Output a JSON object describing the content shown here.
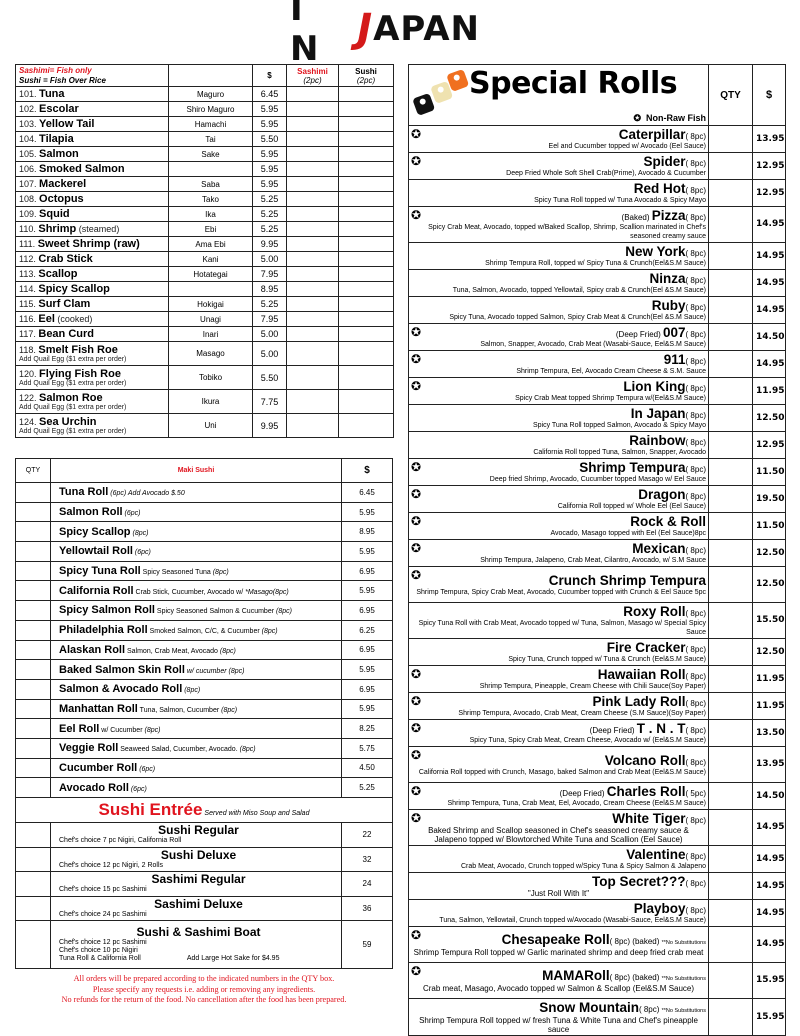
{
  "logo": {
    "text": "IN JAPAN",
    "colors": {
      "ink": "#111111",
      "accent": "#d41a1a"
    }
  },
  "nigiri": {
    "legend_sashimi": "Sashimi= Fish only",
    "legend_sushi": "Sushi   = Fish Over Rice",
    "col_price": "$",
    "col_sashimi": "Sashimi",
    "col_sashimi_sub": "(2pc)",
    "col_sushi": "Sushi",
    "col_sushi_sub": "(2pc)",
    "items": [
      {
        "no": "101.",
        "name": "Tuna",
        "note": "",
        "jp": "Maguro",
        "price": "6.45",
        "sub": ""
      },
      {
        "no": "102.",
        "name": "Escolar",
        "note": "",
        "jp": "Shiro Maguro",
        "price": "5.95",
        "sub": ""
      },
      {
        "no": "103.",
        "name": "Yellow Tail",
        "note": "",
        "jp": "Hamachi",
        "price": "5.95",
        "sub": ""
      },
      {
        "no": "104.",
        "name": "Tilapia",
        "note": "",
        "jp": "Tai",
        "price": "5.50",
        "sub": ""
      },
      {
        "no": "105.",
        "name": "Salmon",
        "note": "",
        "jp": "Sake",
        "price": "5.95",
        "sub": ""
      },
      {
        "no": "106.",
        "name": "Smoked Salmon",
        "note": "",
        "jp": "",
        "price": "5.95",
        "sub": ""
      },
      {
        "no": "107.",
        "name": "Mackerel",
        "note": "",
        "jp": "Saba",
        "price": "5.95",
        "sub": ""
      },
      {
        "no": "108.",
        "name": "Octopus",
        "note": "",
        "jp": "Tako",
        "price": "5.25",
        "sub": ""
      },
      {
        "no": "109.",
        "name": "Squid",
        "note": "",
        "jp": "Ika",
        "price": "5.25",
        "sub": ""
      },
      {
        "no": "110.",
        "name": "Shrimp",
        "note": "(steamed)",
        "jp": "Ebi",
        "price": "5.25",
        "sub": ""
      },
      {
        "no": "111.",
        "name": "Sweet Shrimp (raw)",
        "note": "",
        "jp": "Ama Ebi",
        "price": "9.95",
        "sub": ""
      },
      {
        "no": "112.",
        "name": "Crab Stick",
        "note": "",
        "jp": "Kani",
        "price": "5.00",
        "sub": ""
      },
      {
        "no": "113.",
        "name": "Scallop",
        "note": "",
        "jp": "Hotategai",
        "price": "7.95",
        "sub": ""
      },
      {
        "no": "114.",
        "name": "Spicy Scallop",
        "note": "",
        "jp": "",
        "price": "8.95",
        "sub": ""
      },
      {
        "no": "115.",
        "name": "Surf Clam",
        "note": "",
        "jp": "Hokigai",
        "price": "5.25",
        "sub": ""
      },
      {
        "no": "116.",
        "name": "Eel",
        "note": "(cooked)",
        "jp": "Unagi",
        "price": "7.95",
        "sub": ""
      },
      {
        "no": "117.",
        "name": "Bean Curd",
        "note": "",
        "jp": "Inari",
        "price": "5.00",
        "sub": ""
      },
      {
        "no": "118.",
        "name": "Smelt Fish Roe",
        "note": "",
        "jp": "Masago",
        "price": "5.00",
        "sub": "Add Quail Egg ($1 extra per order)"
      },
      {
        "no": "120.",
        "name": "Flying Fish Roe",
        "note": "",
        "jp": "Tobiko",
        "price": "5.50",
        "sub": "Add Quail Egg ($1 extra per order)"
      },
      {
        "no": "122.",
        "name": "Salmon Roe",
        "note": "",
        "jp": "Ikura",
        "price": "7.75",
        "sub": "Add Quail Egg ($1 extra per order)"
      },
      {
        "no": "124.",
        "name": "Sea Urchin",
        "note": "",
        "jp": "Uni",
        "price": "9.95",
        "sub": "Add Quail Egg ($1 extra per order)"
      }
    ]
  },
  "maki": {
    "col_qty": "QTY",
    "title": "Maki Sushi",
    "col_price": "$",
    "items": [
      {
        "name": "Tuna Roll",
        "desc": "",
        "note": "(6pc)  Add Avocado $.50",
        "price": "6.45"
      },
      {
        "name": "Salmon Roll",
        "desc": "",
        "note": "(6pc)",
        "price": "5.95"
      },
      {
        "name": "Spicy Scallop",
        "desc": "",
        "note": "(8pc)",
        "price": "8.95"
      },
      {
        "name": "Yellowtail Roll",
        "desc": "",
        "note": "(6pc)",
        "price": "5.95"
      },
      {
        "name": "Spicy Tuna Roll",
        "desc": "Spicy Seasoned Tuna",
        "note": "(8pc)",
        "price": "6.95"
      },
      {
        "name": "California Roll",
        "desc": "Crab Stick, Cucumber, Avocado w/",
        "note": "*Masago(8pc)",
        "price": "5.95"
      },
      {
        "name": "Spicy Salmon Roll",
        "desc": "Spicy Seasoned Salmon & Cucumber",
        "note": "(8pc)",
        "price": "6.95"
      },
      {
        "name": "Philadelphia Roll",
        "desc": "Smoked Salmon, C/C, & Cucumber",
        "note": "(8pc)",
        "price": "6.25"
      },
      {
        "name": "Alaskan Roll",
        "desc": "Salmon, Crab Meat, Avocado",
        "note": "(8pc)",
        "price": "6.95"
      },
      {
        "name": "Baked Salmon Skin Roll",
        "desc": "",
        "note": "w/ cucumber (8pc)",
        "price": "5.95"
      },
      {
        "name": "Salmon & Avocado Roll",
        "desc": "",
        "note": "(8pc)",
        "price": "6.95"
      },
      {
        "name": "Manhattan Roll",
        "desc": "Tuna, Salmon, Cucumber",
        "note": "(8pc)",
        "price": "5.95"
      },
      {
        "name": "Eel Roll",
        "desc": "w/ Cucumber",
        "note": "(8pc)",
        "price": "8.25"
      },
      {
        "name": "Veggie Roll",
        "desc": "Seaweed Salad, Cucumber, Avocado.",
        "note": "(8pc)",
        "price": "5.75"
      },
      {
        "name": "Cucumber Roll",
        "desc": "",
        "note": "(6pc)",
        "price": "4.50"
      },
      {
        "name": "Avocado Roll",
        "desc": "",
        "note": "(6pc)",
        "price": "5.25"
      }
    ]
  },
  "entree": {
    "title": "Sushi Entrée",
    "subtitle": "Served with Miso Soup and Salad",
    "items": [
      {
        "name": "Sushi Regular",
        "lines": [
          "Chef's choice 7 pc Nigiri, California Roll"
        ],
        "extra": "",
        "price": "22"
      },
      {
        "name": "Sushi Deluxe",
        "lines": [
          "Chef's choice 12 pc Nigiri, 2 Rolls"
        ],
        "extra": "",
        "price": "32"
      },
      {
        "name": "Sashimi Regular",
        "lines": [
          "Chef's choice 15 pc Sashimi"
        ],
        "extra": "",
        "price": "24"
      },
      {
        "name": "Sashimi Deluxe",
        "lines": [
          "Chef's choice 24 pc Sashimi"
        ],
        "extra": "",
        "price": "36"
      },
      {
        "name": "Sushi & Sashimi Boat",
        "lines": [
          "Chef's choice 12 pc Sashimi",
          "Chef's choice 10 pc Nigiri",
          "Tuna Roll & California Roll"
        ],
        "extra": "Add Large Hot Sake for  $4.95",
        "price": "59"
      }
    ]
  },
  "notes": [
    "All orders will be prepared according to the indicated numbers in the QTY box.",
    "Please specify any requests i.e. adding or removing any ingredients.",
    "No refunds for the return of the food. No cancellation after the food has been prepared."
  ],
  "special_rolls": {
    "title": "Special Rolls",
    "col_qty": "QTY",
    "col_price": "$",
    "legend": "Non-Raw Fish",
    "star_icon": "star-outline",
    "items": [
      {
        "star": true,
        "prefix": "",
        "name": "Caterpillar",
        "size": "( 8pc)",
        "nosub": "",
        "desc": "Eel and Cucumber topped w/ Avocado (Eel Sauce)",
        "price": "13.95",
        "tall": false,
        "center": false
      },
      {
        "star": true,
        "prefix": "",
        "name": "Spider",
        "size": "( 8pc)",
        "nosub": "",
        "desc": "Deep Fried Whole Soft Shell Crab(Prime), Avocado & Cucumber",
        "price": "12.95",
        "tall": false,
        "center": false
      },
      {
        "star": false,
        "prefix": "",
        "name": "Red Hot",
        "size": "( 8pc)",
        "nosub": "",
        "desc": "Spicy Tuna Roll topped w/ Tuna Avocado  & Spicy Mayo",
        "price": "12.95",
        "tall": false,
        "center": false
      },
      {
        "star": true,
        "prefix": "(Baked)",
        "name": "Pizza",
        "size": "( 8pc)",
        "nosub": "",
        "desc": "Spicy Crab Meat, Avocado, topped w/Baked Scallop, Shrimp, Scallion marinated in Chef's seasoned creamy sauce",
        "price": "14.95",
        "tall": true,
        "center": false
      },
      {
        "star": false,
        "prefix": "",
        "name": "New York",
        "size": "( 8pc)",
        "nosub": "",
        "desc": "Shrimp Tempura Roll, topped w/ Spicy Tuna & Crunch(Eel&S.M Sauce)",
        "price": "14.95",
        "tall": false,
        "center": false
      },
      {
        "star": false,
        "prefix": "",
        "name": "Ninza",
        "size": "( 8pc)",
        "nosub": "",
        "desc": "Tuna, Salmon, Avocado, topped Yellowtail, Spicy crab & Crunch(Eel &S.M Sauce)",
        "price": "14.95",
        "tall": false,
        "center": false
      },
      {
        "star": false,
        "prefix": "",
        "name": "Ruby",
        "size": "( 8pc)",
        "nosub": "",
        "desc": "Spicy Tuna, Avocado topped Salmon, Spicy Crab Meat & Crunch(Eel &S.M Sauce)",
        "price": "14.95",
        "tall": false,
        "center": false
      },
      {
        "star": true,
        "prefix": "(Deep Fried)",
        "name": "007",
        "size": "( 8pc)",
        "nosub": "",
        "desc": "Salmon, Snapper, Avocado, Crab Meat (Wasabi-Sauce, Eel&S.M Sauce)",
        "price": "14.50",
        "tall": false,
        "center": false
      },
      {
        "star": true,
        "prefix": "",
        "name": "911",
        "size": "( 8pc)",
        "nosub": "",
        "desc": "Shrimp Tempura, Eel, Avocado Cream Cheese & S.M. Sauce",
        "price": "14.95",
        "tall": false,
        "center": false
      },
      {
        "star": true,
        "prefix": "",
        "name": "Lion King",
        "size": "( 8pc)",
        "nosub": "",
        "desc": "Spicy Crab Meat topped Shrimp Tempura w/(Eel&S.M Sauce)",
        "price": "11.95",
        "tall": false,
        "center": false
      },
      {
        "star": false,
        "prefix": "",
        "name": "In Japan",
        "size": "( 8pc)",
        "nosub": "",
        "desc": "Spicy Tuna Roll topped Salmon, Avocado & Spicy Mayo",
        "price": "12.50",
        "tall": false,
        "center": false
      },
      {
        "star": false,
        "prefix": "",
        "name": "Rainbow",
        "size": "( 8pc)",
        "nosub": "",
        "desc": "California Roll topped Tuna, Salmon, Snapper, Avocado",
        "price": "12.95",
        "tall": false,
        "center": false
      },
      {
        "star": true,
        "prefix": "",
        "name": "Shrimp Tempura",
        "size": "( 8pc)",
        "nosub": "",
        "desc": "Deep fried Shrimp, Avocado, Cucumber topped Masago w/ Eel Sauce",
        "price": "11.50",
        "tall": false,
        "center": false
      },
      {
        "star": true,
        "prefix": "",
        "name": "Dragon",
        "size": "( 8pc)",
        "nosub": "",
        "desc": "California Roll topped w/ Whole Eel (Eel Sauce)",
        "price": "19.50",
        "tall": false,
        "center": false
      },
      {
        "star": true,
        "prefix": "",
        "name": "Rock & Roll",
        "size": "",
        "nosub": "",
        "desc": "Avocado, Masago topped with Eel (Eel Sauce)8pc",
        "price": "11.50",
        "tall": false,
        "center": false
      },
      {
        "star": true,
        "prefix": "",
        "name": "Mexican",
        "size": "( 8pc)",
        "nosub": "",
        "desc": "Shrimp Tempura, Jalapeno, Crab Meat, Cilantro, Avocado, w/ S.M Sauce",
        "price": "12.50",
        "tall": false,
        "center": false
      },
      {
        "star": true,
        "prefix": "",
        "name": "Crunch Shrimp Tempura",
        "size": "",
        "nosub": "",
        "desc": "Shrimp Tempura, Spicy Crab Meat, Avocado, Cucumber topped with Crunch & Eel Sauce 5pc",
        "price": "12.50",
        "tall": true,
        "center": false
      },
      {
        "star": false,
        "prefix": "",
        "name": "Roxy Roll",
        "size": "( 8pc)",
        "nosub": "",
        "desc": "Spicy Tuna Roll with Crab Meat, Avocado topped w/ Tuna, Salmon, Masago w/ Special Spicy Sauce",
        "price": "15.50",
        "tall": true,
        "center": false
      },
      {
        "star": false,
        "prefix": "",
        "name": "Fire Cracker",
        "size": "( 8pc)",
        "nosub": "",
        "desc": "Spicy Tuna, Crunch topped w/ Tuna & Crunch (Eel&S.M Sauce)",
        "price": "12.50",
        "tall": false,
        "center": false
      },
      {
        "star": true,
        "prefix": "",
        "name": "Hawaiian Roll",
        "size": "( 8pc)",
        "nosub": "",
        "desc": "Shrimp Tempura, Pineapple, Cream Cheese with Chili Sauce(Soy Paper)",
        "price": "11.95",
        "tall": false,
        "center": false
      },
      {
        "star": true,
        "prefix": "",
        "name": "Pink Lady Roll",
        "size": "( 8pc)",
        "nosub": "",
        "desc": "Shrimp Tempura, Avocado, Crab Meat, Cream Cheese (S.M Sauce)(Soy Paper)",
        "price": "11.95",
        "tall": false,
        "center": false
      },
      {
        "star": true,
        "prefix": "(Deep Fried)",
        "name": "T . N . T",
        "size": "( 8pc)",
        "nosub": "",
        "desc": "Spicy Tuna, Spicy Crab Meat, Cream Cheese, Avocado w/ (Eel&S.M Sauce)",
        "price": "13.50",
        "tall": false,
        "center": false
      },
      {
        "star": true,
        "prefix": "",
        "name": "Volcano Roll",
        "size": "( 8pc)",
        "nosub": "",
        "desc": "California Roll topped with Crunch,  Masago, baked Salmon and Crab Meat (Eel&S.M Sauce)",
        "price": "13.95",
        "tall": true,
        "center": false
      },
      {
        "star": true,
        "prefix": "(Deep Fried)",
        "name": "Charles Roll",
        "size": "( 5pc)",
        "nosub": "",
        "desc": "Shrimp Tempura, Tuna, Crab Meat, Eel, Avocado, Cream Cheese (Eel&S.M Sauce)",
        "price": "14.50",
        "tall": false,
        "center": false
      },
      {
        "star": true,
        "prefix": "",
        "name": "White Tiger",
        "size": "( 8pc)",
        "nosub": "",
        "desc": "Baked Shrimp and Scallop seasoned in Chef's seasoned creamy sauce & Jalapeno topped w/ Blowtorched White Tuna and Scallion (Eel Sauce)",
        "price": "14.95",
        "tall": true,
        "center": true
      },
      {
        "star": false,
        "prefix": "",
        "name": "Valentine",
        "size": "( 8pc)",
        "nosub": "",
        "desc": "Crab Meat, Avocado, Crunch topped w/Spicy Tuna & Spicy Salmon & Jalapeno",
        "price": "14.95",
        "tall": false,
        "center": false
      },
      {
        "star": false,
        "prefix": "",
        "name": "Top Secret???",
        "size": "( 8pc)",
        "nosub": "",
        "desc": "\"Just Roll With It\"",
        "price": "14.95",
        "tall": false,
        "center": true
      },
      {
        "star": false,
        "prefix": "",
        "name": "Playboy",
        "size": "( 8pc)",
        "nosub": "",
        "desc": "Tuna, Salmon, Yellowtail, Crunch topped w/Avocado  (Wasabi-Sauce, Eel&S.M Sauce)",
        "price": "14.95",
        "tall": false,
        "center": false
      },
      {
        "star": true,
        "prefix": "",
        "name": "Chesapeake Roll",
        "size": "( 8pc) (baked)",
        "nosub": "**No Substitutions",
        "desc": "Shrimp Tempura Roll topped w/ Garlic marinated shrimp and deep fried crab meat",
        "price": "14.95",
        "tall": true,
        "center": true
      },
      {
        "star": true,
        "prefix": "",
        "name": "MAMARoll",
        "size": "( 8pc) (baked)",
        "nosub": "**No Substitutions",
        "desc": "Crab meat, Masago, Avocado topped w/ Salmon & Scallop (Eel&S.M Sauce)",
        "price": "15.95",
        "tall": true,
        "center": true
      },
      {
        "star": false,
        "prefix": "",
        "name": "Snow Mountain",
        "size": "( 8pc)",
        "nosub": "**No Substitutions",
        "desc": "Shrimp Tempura Roll topped w/ fresh Tuna & White Tuna and Chef's pineapple sauce",
        "price": "15.95",
        "tall": true,
        "center": true
      }
    ]
  }
}
